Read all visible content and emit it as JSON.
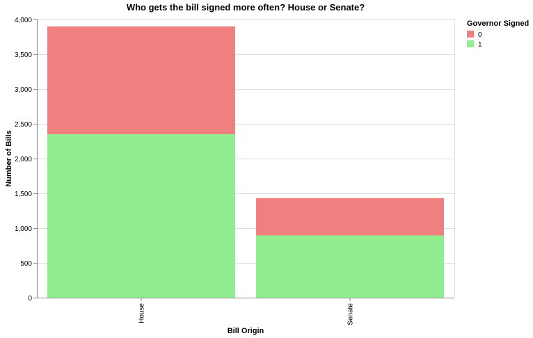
{
  "chart_data": {
    "type": "bar",
    "stacked": true,
    "title": "Who gets the bill signed more often? House or Senate?",
    "xlabel": "Bill Origin",
    "ylabel": "Number of Bills",
    "categories": [
      "House",
      "Senate"
    ],
    "ylim": [
      0,
      4000
    ],
    "yticks": [
      0,
      500,
      1000,
      1500,
      2000,
      2500,
      3000,
      3500,
      4000
    ],
    "ytick_labels": [
      "0",
      "500",
      "1,000",
      "1,500",
      "2,000",
      "2,500",
      "3,000",
      "3,500",
      "4,000"
    ],
    "grid": true,
    "legend": {
      "title": "Governor Signed",
      "position": "top-right"
    },
    "series": [
      {
        "name": "1",
        "color": "#90ee90",
        "values": [
          2350,
          895
        ]
      },
      {
        "name": "0",
        "color": "#f08080",
        "values": [
          1550,
          535
        ]
      }
    ],
    "legend_order": [
      "0",
      "1"
    ]
  }
}
